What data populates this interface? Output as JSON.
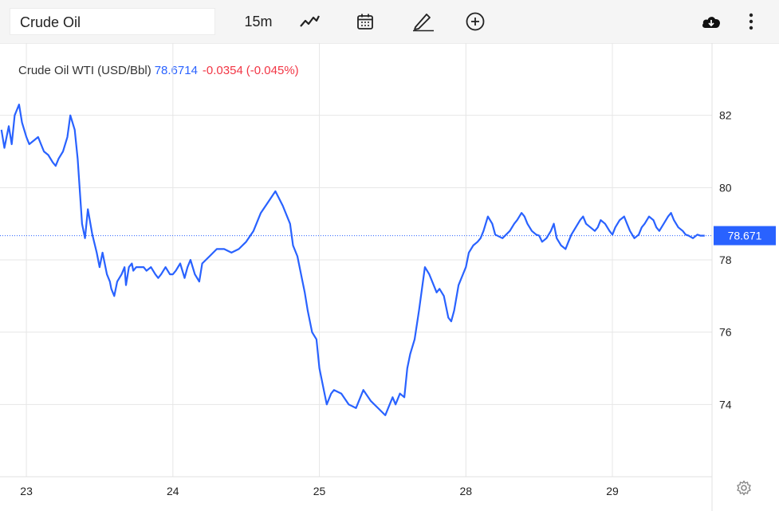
{
  "toolbar": {
    "symbol": "Crude Oil",
    "interval": "15m",
    "icons": [
      "line-chart-icon",
      "calendar-icon",
      "pencil-icon",
      "plus-circle-icon",
      "cloud-download-icon",
      "more-vertical-icon"
    ]
  },
  "legend": {
    "name": "Crude Oil WTI (USD/Bbl)",
    "price": "78.6714",
    "change": "-0.0354",
    "change_pct": "(-0.045%)"
  },
  "colors": {
    "line": "#2962ff",
    "negative": "#f23645",
    "grid": "#e6e6e6"
  },
  "chart_data": {
    "type": "line",
    "title": "",
    "xlabel": "",
    "ylabel": "",
    "ylim": [
      72.0,
      84.0
    ],
    "xlim": [
      -0.18,
      4.68
    ],
    "x_ticks": [
      {
        "x": 0,
        "label": "23"
      },
      {
        "x": 1,
        "label": "24"
      },
      {
        "x": 2,
        "label": "25"
      },
      {
        "x": 3,
        "label": "28"
      },
      {
        "x": 4,
        "label": "29"
      }
    ],
    "y_ticks": [
      74,
      76,
      78,
      80,
      82
    ],
    "last_price": 78.671,
    "last_price_label": "78.671",
    "grid": true,
    "series": [
      {
        "x": [
          -0.17,
          -0.15,
          -0.12,
          -0.1,
          -0.08,
          -0.05,
          -0.03,
          0,
          0.02,
          0.05,
          0.08,
          0.1,
          0.12,
          0.15,
          0.18,
          0.2,
          0.22,
          0.25,
          0.28,
          0.3,
          0.33,
          0.35,
          0.38,
          0.4,
          0.42,
          0.45,
          0.48,
          0.5,
          0.52,
          0.55,
          0.57,
          0.58,
          0.6,
          0.62,
          0.65,
          0.67,
          0.68,
          0.7,
          0.72,
          0.73,
          0.75,
          0.77,
          0.8,
          0.82,
          0.85,
          0.88,
          0.9,
          0.92,
          0.95,
          0.98,
          1,
          1.02,
          1.05,
          1.08,
          1.1,
          1.12,
          1.15,
          1.18,
          1.2,
          1.25,
          1.3,
          1.35,
          1.4,
          1.45,
          1.5,
          1.55,
          1.6,
          1.65,
          1.7,
          1.75,
          1.8,
          1.82,
          1.85,
          1.88,
          1.9,
          1.92,
          1.95,
          1.98,
          2,
          2.03,
          2.05,
          2.08,
          2.1,
          2.15,
          2.2,
          2.25,
          2.28,
          2.3,
          2.35,
          2.4,
          2.45,
          2.5,
          2.52,
          2.55,
          2.58,
          2.6,
          2.62,
          2.65,
          2.68,
          2.7,
          2.72,
          2.75,
          2.78,
          2.8,
          2.82,
          2.85,
          2.88,
          2.9,
          2.92,
          2.95,
          2.98,
          3,
          3.02,
          3.05,
          3.08,
          3.1,
          3.12,
          3.15,
          3.18,
          3.2,
          3.25,
          3.3,
          3.33,
          3.35,
          3.38,
          3.4,
          3.42,
          3.45,
          3.48,
          3.5,
          3.52,
          3.55,
          3.58,
          3.6,
          3.62,
          3.65,
          3.68,
          3.7,
          3.72,
          3.75,
          3.78,
          3.8,
          3.82,
          3.85,
          3.88,
          3.9,
          3.92,
          3.95,
          3.98,
          4,
          4.02,
          4.05,
          4.08,
          4.1,
          4.12,
          4.15,
          4.18,
          4.2,
          4.22,
          4.25,
          4.28,
          4.3,
          4.32,
          4.35,
          4.38,
          4.4,
          4.42,
          4.45,
          4.48,
          4.5,
          4.52,
          4.55,
          4.58,
          4.6,
          4.62,
          4.63
        ],
        "y": [
          81.6,
          81.1,
          81.7,
          81.2,
          82.0,
          82.3,
          81.8,
          81.4,
          81.2,
          81.3,
          81.4,
          81.2,
          81.0,
          80.9,
          80.7,
          80.6,
          80.8,
          81.0,
          81.4,
          82.0,
          81.6,
          80.8,
          79.0,
          78.6,
          79.4,
          78.7,
          78.2,
          77.8,
          78.2,
          77.6,
          77.4,
          77.2,
          77.0,
          77.4,
          77.6,
          77.8,
          77.3,
          77.8,
          77.9,
          77.7,
          77.8,
          77.8,
          77.8,
          77.7,
          77.8,
          77.6,
          77.5,
          77.6,
          77.8,
          77.6,
          77.6,
          77.7,
          77.9,
          77.5,
          77.8,
          78.0,
          77.6,
          77.4,
          77.9,
          78.1,
          78.3,
          78.3,
          78.2,
          78.3,
          78.5,
          78.8,
          79.3,
          79.6,
          79.9,
          79.5,
          79.0,
          78.4,
          78.1,
          77.5,
          77.1,
          76.6,
          76.0,
          75.8,
          75.0,
          74.4,
          74.0,
          74.3,
          74.4,
          74.3,
          74.0,
          73.9,
          74.2,
          74.4,
          74.1,
          73.9,
          73.7,
          74.2,
          74.0,
          74.3,
          74.2,
          75.0,
          75.4,
          75.8,
          76.6,
          77.2,
          77.8,
          77.6,
          77.3,
          77.1,
          77.2,
          77.0,
          76.4,
          76.3,
          76.6,
          77.3,
          77.6,
          77.8,
          78.2,
          78.4,
          78.5,
          78.6,
          78.8,
          79.2,
          79.0,
          78.7,
          78.6,
          78.8,
          79.0,
          79.1,
          79.3,
          79.2,
          79.0,
          78.8,
          78.7,
          78.671,
          78.5,
          78.6,
          78.8,
          79.0,
          78.6,
          78.4,
          78.3,
          78.5,
          78.7,
          78.9,
          79.1,
          79.2,
          79.0,
          78.9,
          78.8,
          78.9,
          79.1,
          79.0,
          78.8,
          78.7,
          78.9,
          79.1,
          79.2,
          79.0,
          78.8,
          78.6,
          78.7,
          78.9,
          79.0,
          79.2,
          79.1,
          78.9,
          78.8,
          79.0,
          79.2,
          79.3,
          79.1,
          78.9,
          78.8,
          78.7,
          78.671,
          78.6,
          78.7,
          78.671,
          78.671,
          78.671
        ],
        "note_y_shape": "approximate"
      }
    ]
  }
}
